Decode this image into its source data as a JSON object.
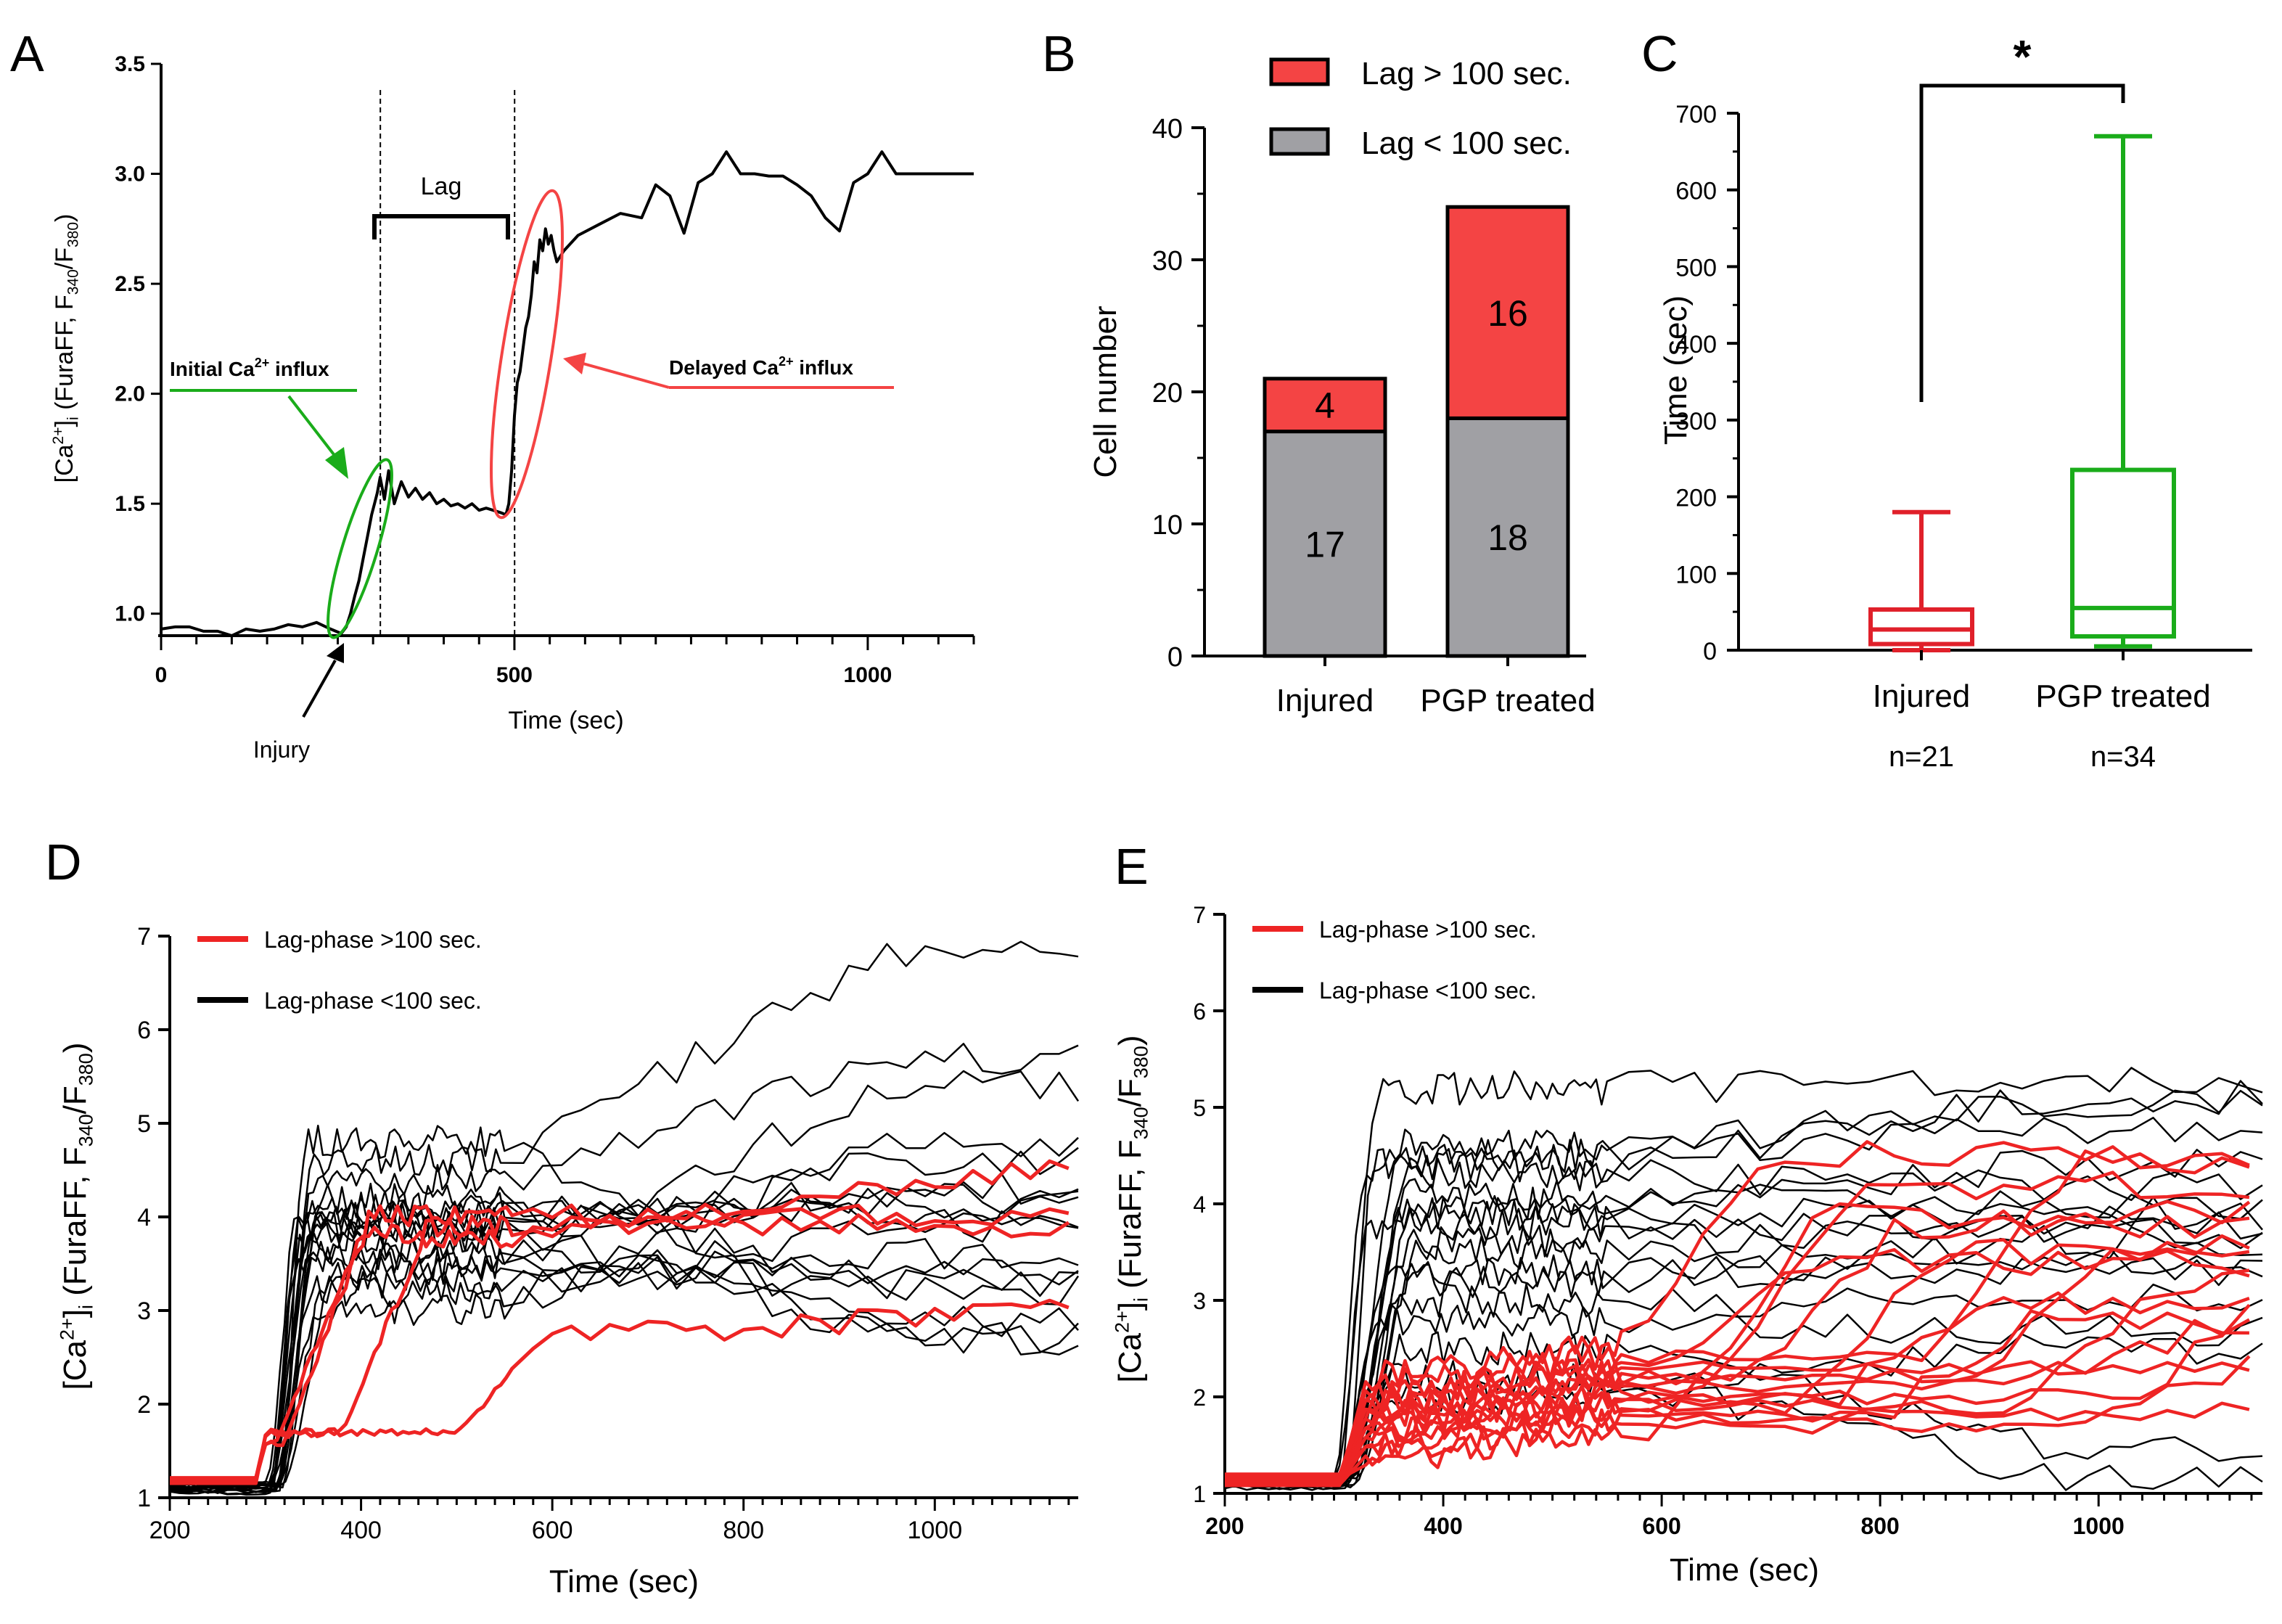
{
  "figure": {
    "panel_labels": [
      "A",
      "B",
      "C",
      "D",
      "E"
    ]
  },
  "colors": {
    "red": "#f44444",
    "red_line": "#ee2424",
    "green": "#1aac1a",
    "gray": "#a0a0a4",
    "black": "#000000",
    "box_red": "#e0202a"
  },
  "chart_data": [
    {
      "panel": "A",
      "type": "line",
      "ylabel_parts": [
        "[Ca",
        "2+",
        "]",
        "i",
        " (FuraFF, F",
        "340",
        "/F",
        "380",
        ")"
      ],
      "xlabel": "Time (sec)",
      "xlim": [
        0,
        1150
      ],
      "ylim": [
        0.9,
        3.5
      ],
      "xticks": [
        0,
        500,
        1000
      ],
      "xtick_labels": [
        "0",
        "500",
        "1000"
      ],
      "yticks": [
        1.0,
        1.5,
        2.0,
        2.5,
        3.0,
        3.5
      ],
      "ytick_labels": [
        "1.0",
        "1.5",
        "2.0",
        "2.5",
        "3.0",
        "3.5"
      ],
      "series": [
        {
          "name": "trace",
          "x": [
            0,
            20,
            40,
            60,
            80,
            100,
            120,
            140,
            160,
            180,
            200,
            220,
            240,
            255,
            262,
            268,
            274,
            280,
            286,
            292,
            298,
            302,
            306,
            310,
            316,
            322,
            330,
            340,
            350,
            360,
            370,
            380,
            390,
            400,
            410,
            420,
            430,
            440,
            450,
            460,
            470,
            480,
            488,
            492,
            496,
            500,
            504,
            508,
            512,
            516,
            520,
            524,
            528,
            532,
            536,
            540,
            544,
            548,
            552,
            556,
            560,
            570,
            590,
            620,
            650,
            680,
            700,
            720,
            740,
            760,
            780,
            800,
            820,
            840,
            860,
            880,
            900,
            920,
            940,
            960,
            980,
            1000,
            1020,
            1040,
            1060,
            1080,
            1100,
            1120,
            1150
          ],
          "y": [
            0.93,
            0.94,
            0.94,
            0.92,
            0.92,
            0.9,
            0.93,
            0.92,
            0.93,
            0.95,
            0.94,
            0.96,
            0.93,
            0.91,
            0.94,
            1.0,
            1.08,
            1.15,
            1.25,
            1.35,
            1.45,
            1.5,
            1.55,
            1.62,
            1.52,
            1.65,
            1.5,
            1.6,
            1.53,
            1.57,
            1.52,
            1.55,
            1.5,
            1.52,
            1.49,
            1.5,
            1.48,
            1.5,
            1.47,
            1.48,
            1.47,
            1.46,
            1.45,
            1.5,
            1.65,
            1.9,
            2.05,
            2.1,
            2.2,
            2.3,
            2.35,
            2.45,
            2.6,
            2.55,
            2.7,
            2.65,
            2.75,
            2.68,
            2.72,
            2.65,
            2.6,
            2.65,
            2.72,
            2.77,
            2.82,
            2.8,
            2.95,
            2.9,
            2.73,
            2.96,
            3.0,
            3.1,
            3.0,
            3.0,
            2.99,
            2.99,
            2.95,
            2.9,
            2.8,
            2.74,
            2.96,
            3.0,
            3.1,
            3.0,
            3.0,
            3.0,
            3.0,
            3.0,
            3.0
          ]
        }
      ],
      "annotations": {
        "lag": "Lag",
        "injury": "Injury",
        "initial_prefix": "Initial Ca",
        "initial_sup": "2+",
        "initial_suffix": " influx",
        "delayed_prefix": "Delayed Ca",
        "delayed_sup": "2+",
        "delayed_suffix": " influx",
        "dashed_lines_at": [
          300,
          490
        ]
      }
    },
    {
      "panel": "B",
      "type": "bar",
      "stacked": true,
      "categories": [
        "Injured",
        "PGP treated"
      ],
      "ylabel": "Cell number",
      "ylim": [
        0,
        40
      ],
      "yticks": [
        0,
        10,
        20,
        30,
        40
      ],
      "ytick_labels": [
        "0",
        "10",
        "20",
        "30",
        "40"
      ],
      "series": [
        {
          "name": "Lag < 100 sec.",
          "values": [
            17,
            18
          ],
          "labels": [
            "17",
            "18"
          ]
        },
        {
          "name": "Lag > 100 sec.",
          "values": [
            4,
            16
          ],
          "labels": [
            "4",
            "16"
          ]
        }
      ],
      "legend": [
        "Lag > 100 sec.",
        "Lag < 100 sec."
      ],
      "legend_position": "top-right"
    },
    {
      "panel": "C",
      "type": "box",
      "categories": [
        "Injured",
        "PGP treated"
      ],
      "n_labels": [
        "n=21",
        "n=34"
      ],
      "ylabel": "Time (sec)",
      "ylim": [
        0,
        700
      ],
      "yticks": [
        0,
        100,
        200,
        300,
        400,
        500,
        600,
        700
      ],
      "ytick_labels": [
        "0",
        "100",
        "200",
        "300",
        "400",
        "500",
        "600",
        "700"
      ],
      "boxes": [
        {
          "name": "Injured",
          "min": 0,
          "q1": 8,
          "median": 27,
          "q3": 53,
          "max": 180
        },
        {
          "name": "PGP treated",
          "min": 5,
          "q1": 18,
          "median": 55,
          "q3": 235,
          "max": 670
        }
      ],
      "significance": "*"
    },
    {
      "panel": "D",
      "type": "line",
      "xlabel": "Time (sec)",
      "ylabel_parts": [
        "[Ca",
        "2+",
        "]",
        "i",
        " (FuraFF, F",
        "340",
        "/F",
        "380",
        ")"
      ],
      "xlim": [
        200,
        1150
      ],
      "ylim": [
        1,
        7
      ],
      "xticks": [
        200,
        400,
        600,
        800,
        1000
      ],
      "xtick_labels": [
        "200",
        "400",
        "600",
        "800",
        "1000"
      ],
      "yticks": [
        1,
        2,
        3,
        4,
        5,
        6,
        7
      ],
      "ytick_labels": [
        "1",
        "2",
        "3",
        "4",
        "5",
        "6",
        "7"
      ],
      "legend": [
        "Lag-phase >100 sec.",
        "Lag-phase <100 sec."
      ],
      "legend_position": "top-left",
      "fast": {
        "name": "Lag-phase <100 sec.",
        "onset": [
          300,
          305,
          310,
          315,
          302,
          308,
          312,
          318,
          300,
          306,
          310,
          314,
          304,
          309,
          311,
          316,
          303
        ],
        "peak": [
          3.0,
          3.5,
          4.2,
          4.8,
          3.9,
          4.0,
          3.3,
          3.6,
          4.1,
          3.7,
          4.4,
          3.2,
          3.8,
          4.0,
          4.6,
          3.4,
          3.9
        ],
        "late": [
          4.8,
          5.4,
          3.3,
          2.7,
          4.3,
          4.1,
          3.6,
          3.2,
          4.0,
          2.9,
          5.7,
          3.9,
          4.6,
          4.2,
          6.8,
          3.4,
          2.7
        ]
      },
      "lagged": {
        "name": "Lag-phase >100 sec.",
        "onset": [
          310,
          320,
          380,
          500
        ],
        "peak": [
          3.8,
          4.0,
          3.9,
          2.7
        ],
        "late": [
          4.6,
          4.0,
          3.9,
          3.0
        ]
      }
    },
    {
      "panel": "E",
      "type": "line",
      "xlabel": "Time (sec)",
      "ylabel_parts": [
        "[Ca",
        "2+",
        "]",
        "i",
        " (FuraFF, F",
        "340",
        "/F",
        "380",
        ")"
      ],
      "xlim": [
        200,
        1150
      ],
      "ylim": [
        1,
        7
      ],
      "xticks": [
        200,
        400,
        600,
        800,
        1000
      ],
      "xtick_labels": [
        "200",
        "400",
        "600",
        "800",
        "1000"
      ],
      "yticks": [
        1,
        2,
        3,
        4,
        5,
        6,
        7
      ],
      "ytick_labels": [
        "1",
        "2",
        "3",
        "4",
        "5",
        "6",
        "7"
      ],
      "legend": [
        "Lag-phase >100 sec.",
        "Lag-phase <100 sec."
      ],
      "legend_position": "top-left",
      "fast": {
        "name": "Lag-phase <100 sec.",
        "onset": [
          300,
          305,
          310,
          315,
          320,
          302,
          308,
          312,
          318,
          300,
          306,
          310,
          314,
          304,
          309,
          311,
          316,
          303
        ],
        "peak": [
          5.2,
          4.6,
          4.3,
          3.9,
          3.5,
          3.2,
          2.8,
          4.0,
          3.6,
          4.4,
          3.0,
          2.5,
          4.1,
          3.8,
          2.2,
          4.5,
          3.3,
          2.0
        ],
        "late": [
          5.3,
          5.0,
          4.2,
          3.9,
          3.4,
          3.6,
          2.7,
          4.4,
          3.8,
          5.1,
          3.0,
          1.5,
          4.0,
          3.7,
          1.2,
          4.8,
          3.3,
          2.5
        ]
      },
      "lagged": {
        "name": "Lag-phase >100 sec.",
        "early": [
          2.2,
          2.0,
          1.8,
          1.9,
          1.6,
          1.7,
          1.5,
          2.1,
          1.8,
          1.6,
          1.9,
          1.4,
          1.7,
          2.0,
          1.5,
          1.3
        ],
        "rise_start": [
          560,
          600,
          640,
          680,
          720,
          760,
          800,
          840,
          880,
          920,
          960,
          1000,
          1040,
          1080,
          1100,
          600
        ],
        "late": [
          4.5,
          3.4,
          4.2,
          3.8,
          3.5,
          3.0,
          2.8,
          4.4,
          3.6,
          3.2,
          2.7,
          2.4,
          3.3,
          2.5,
          1.9,
          3.9
        ]
      }
    }
  ]
}
